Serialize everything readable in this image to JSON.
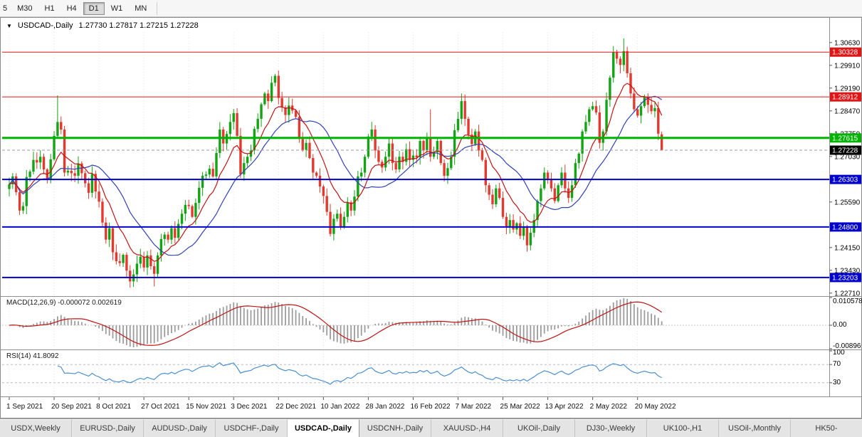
{
  "toolbar": {
    "timeframes": [
      "5",
      "M30",
      "H1",
      "H4",
      "D1",
      "W1",
      "MN"
    ],
    "active": "D1",
    "clipped": "5"
  },
  "chart_header": {
    "symbol": "USDCAD-,Daily",
    "ohlc": "1.27730 1.27817 1.27215 1.27228"
  },
  "colors": {
    "bull": "#14a314",
    "bear": "#e23a2e",
    "macd_hist": "#9c9c9c",
    "macd_signal": "#c41212",
    "rsi_line": "#4a90d2",
    "rsi_level": "#b9b9c9",
    "grid": "#e3e3e3",
    "frame": "#909090",
    "resistance_red": "#e01616",
    "support_green": "#00b300",
    "support_blue": "#0000cc",
    "current_price_black": "#000000"
  },
  "hlines": [
    {
      "price": 1.30328,
      "label": "1.30328",
      "color": "#e01616",
      "width": 1
    },
    {
      "price": 1.28912,
      "label": "1.28912",
      "color": "#e01616",
      "width": 1
    },
    {
      "price": 1.27615,
      "label": "1.27615",
      "color": "#00b300",
      "width": 3
    },
    {
      "price": 1.26303,
      "label": "1.26303",
      "color": "#0000cc",
      "width": 2
    },
    {
      "price": 1.248,
      "label": "1.24800",
      "color": "#0000cc",
      "width": 2
    },
    {
      "price": 1.23203,
      "label": "1.23203",
      "color": "#0000cc",
      "width": 2
    }
  ],
  "current_price": {
    "value": 1.27228,
    "label": "1.27228",
    "color": "#000000"
  },
  "indicators": {
    "macd": {
      "label": "MACD(12,26,9) -0.000072 0.002619",
      "params": [
        12,
        26,
        9
      ],
      "values": {
        "macd": -7.2e-05,
        "signal": 0.002619
      },
      "axis_labels": [
        "0.010578",
        "0.00",
        "-0.00896"
      ],
      "range": {
        "max": 0.010578,
        "min": -0.00896
      }
    },
    "rsi": {
      "label": "RSI(14) 41.8092",
      "period": 14,
      "value": 41.8092,
      "axis_labels": [
        "100",
        "70",
        "30"
      ],
      "levels": [
        70,
        30
      ]
    }
  },
  "chart_data": {
    "type": "candlestick",
    "title": "USDCAD-,Daily",
    "x_labels": [
      "1 Sep 2021",
      "20 Sep 2021",
      "8 Oct 2021",
      "27 Oct 2021",
      "15 Nov 2021",
      "3 Dec 2021",
      "22 Dec 2021",
      "10 Jan 2022",
      "28 Jan 2022",
      "16 Feb 2022",
      "7 Mar 2022",
      "25 Mar 2022",
      "13 Apr 2022",
      "2 May 2022",
      "20 May 2022"
    ],
    "x_label_interval": 13,
    "y_tick_labels": [
      "1.30630",
      "1.29910",
      "1.29190",
      "1.28470",
      "1.27750",
      "1.27030",
      "1.26310",
      "1.25590",
      "1.24870",
      "1.24150",
      "1.23430",
      "1.22710"
    ],
    "y_range": {
      "top": 1.30963,
      "bottom": 1.22661
    },
    "ma_lines": [
      {
        "name": "fast-ma",
        "type": "ema",
        "period": 10,
        "color": "#c41212"
      },
      {
        "name": "slow-ma",
        "type": "sma",
        "period": 20,
        "color": "#3040b8"
      }
    ],
    "closes": [
      1.2615,
      1.264,
      1.259,
      1.2532,
      1.2546,
      1.2638,
      1.2655,
      1.2692,
      1.2684,
      1.2702,
      1.2662,
      1.263,
      1.2694,
      1.2768,
      1.2812,
      1.2788,
      1.2652,
      1.2658,
      1.265,
      1.2642,
      1.2681,
      1.265,
      1.2618,
      1.2588,
      1.2648,
      1.2592,
      1.256,
      1.2494,
      1.244,
      1.2476,
      1.24,
      1.2372,
      1.2366,
      1.2392,
      1.2342,
      1.2308,
      1.233,
      1.2364,
      1.2386,
      1.2352,
      1.239,
      1.2356,
      1.2332,
      1.239,
      1.2442,
      1.2456,
      1.244,
      1.2476,
      1.2446,
      1.249,
      1.2522,
      1.255,
      1.2546,
      1.2512,
      1.2556,
      1.2604,
      1.2642,
      1.2646,
      1.2664,
      1.264,
      1.2714,
      1.2788,
      1.2744,
      1.2774,
      1.2812,
      1.284,
      1.2768,
      1.2646,
      1.2682,
      1.2702,
      1.2722,
      1.279,
      1.2822,
      1.2868,
      1.2902,
      1.2878,
      1.2936,
      1.2958,
      1.2888,
      1.2858,
      1.2834,
      1.2864,
      1.2848,
      1.2828,
      1.2758,
      1.2724,
      1.2746,
      1.2698,
      1.2652,
      1.2642,
      1.2608,
      1.2578,
      1.2528,
      1.2458,
      1.2506,
      1.2522,
      1.2482,
      1.2512,
      1.2558,
      1.2532,
      1.2576,
      1.264,
      1.2652,
      1.2702,
      1.2766,
      1.2788,
      1.2722,
      1.2686,
      1.2668,
      1.2702,
      1.2744,
      1.2682,
      1.2662,
      1.2702,
      1.2686,
      1.2726,
      1.2692,
      1.2706,
      1.27,
      1.2752,
      1.2722,
      1.2762,
      1.2702,
      1.2716,
      1.2752,
      1.2682,
      1.2642,
      1.2666,
      1.2702,
      1.2786,
      1.2822,
      1.2878,
      1.2822,
      1.2772,
      1.2742,
      1.2782,
      1.2722,
      1.2692,
      1.2612,
      1.2582,
      1.2552,
      1.2602,
      1.2572,
      1.2512,
      1.2482,
      1.2502,
      1.2472,
      1.2492,
      1.2452,
      1.2482,
      1.2422,
      1.2462,
      1.2502,
      1.2562,
      1.2602,
      1.2652,
      1.2632,
      1.2602,
      1.2562,
      1.2612,
      1.2652,
      1.2602,
      1.2572,
      1.2612,
      1.2682,
      1.2712,
      1.2782,
      1.2812,
      1.2852,
      1.2862,
      1.2842,
      1.2746,
      1.2782,
      1.2882,
      1.2952,
      1.3032,
      1.3012,
      1.2992,
      1.3036,
      1.2966,
      1.2902,
      1.2852,
      1.2832,
      1.2862,
      1.2892,
      1.2866,
      1.2846,
      1.2856,
      1.2775,
      1.27228
    ],
    "wick_overrides": {
      "14": {
        "h": 1.2896
      },
      "35": {
        "l": 1.2288
      },
      "42": {
        "l": 1.2292
      },
      "77": {
        "h": 1.2964
      },
      "93": {
        "l": 1.245
      },
      "122": {
        "h": 1.2852
      },
      "131": {
        "h": 1.2902
      },
      "150": {
        "l": 1.2402
      },
      "175": {
        "h": 1.3052
      },
      "178": {
        "h": 1.3076
      },
      "189": {
        "o": 1.2773,
        "h": 1.27817,
        "l": 1.27215
      }
    }
  },
  "bottom_tabs": {
    "tabs": [
      "USDX,Weekly",
      "EURUSD-,Daily",
      "AUDUSD-,Daily",
      "USDCHF-,Daily",
      "USDCAD-,Daily",
      "USDCNH-,Daily",
      "XAUUSD-,H4",
      "UKOil-,Daily",
      "DJ30-,Weekly",
      "UK100-,H1",
      "USOil-,Monthly",
      "HK50-"
    ],
    "active": "USDCAD-,Daily"
  }
}
